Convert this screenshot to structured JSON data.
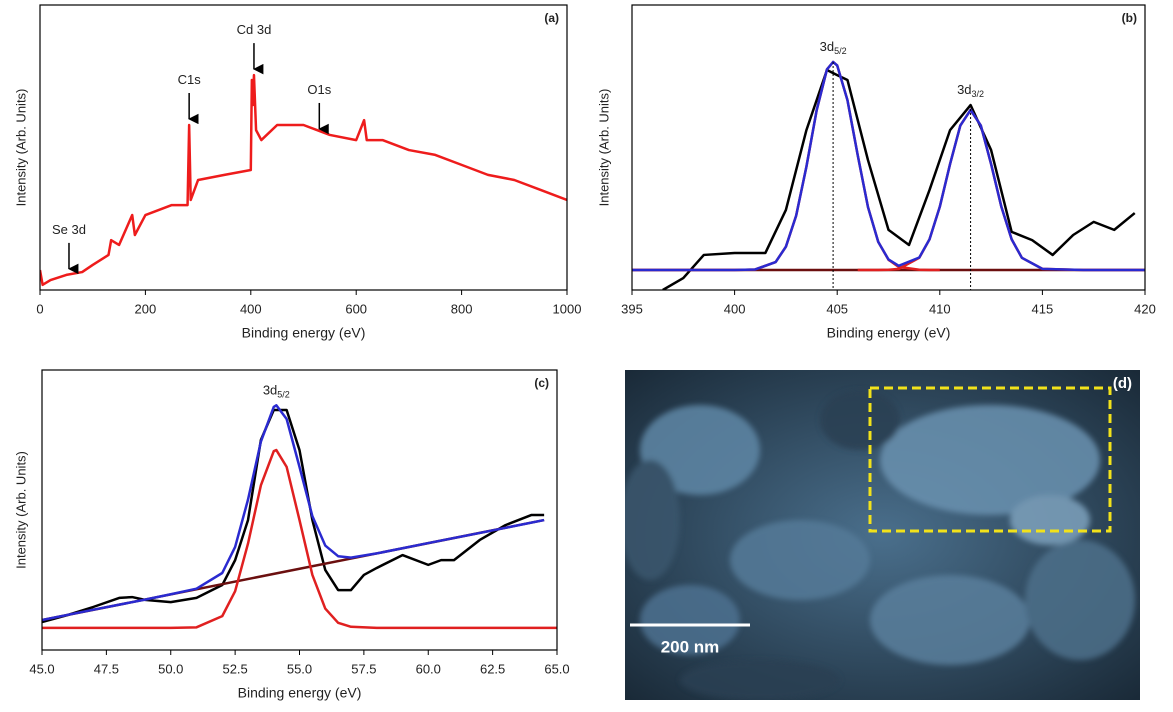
{
  "chart_data": [
    {
      "type": "line",
      "panel_label": "(a)",
      "x_label": "Binding energy (eV)",
      "y_label": "Intensity (Arb. Units)",
      "xlim": [
        0,
        1000
      ],
      "xticks": [
        0,
        200,
        400,
        600,
        800,
        1000
      ],
      "ylim": [
        0,
        100
      ],
      "series": [
        {
          "color": "#ee1c1c",
          "x": [
            0,
            5,
            20,
            50,
            80,
            100,
            130,
            135,
            150,
            175,
            180,
            200,
            250,
            280,
            283,
            286,
            300,
            350,
            400,
            402,
            404,
            406,
            410,
            420,
            450,
            500,
            550,
            600,
            615,
            620,
            650,
            700,
            750,
            800,
            850,
            900,
            950,
            1000
          ],
          "values": [
            7.0,
            1.8,
            3.5,
            5.3,
            6.3,
            8.8,
            12.3,
            17.5,
            15.8,
            26.3,
            19.3,
            26.3,
            29.8,
            29.8,
            57.9,
            31.6,
            38.6,
            40.4,
            42.1,
            73.7,
            64.9,
            75.4,
            56.1,
            52.6,
            57.9,
            57.9,
            54.4,
            52.6,
            59.6,
            52.6,
            52.6,
            49.1,
            47.4,
            43.9,
            40.4,
            38.6,
            35.1,
            31.6
          ]
        }
      ],
      "annotations": [
        {
          "text": "Se 3d",
          "x": 55,
          "arrow": true
        },
        {
          "text": "C1s",
          "x": 283,
          "arrow": true
        },
        {
          "text": "Cd 3d",
          "x": 406,
          "arrow": true
        },
        {
          "text": "O1s",
          "x": 530,
          "arrow": true
        }
      ]
    },
    {
      "type": "line",
      "panel_label": "(b)",
      "x_label": "Binding energy (eV)",
      "y_label": "Intensity (Arb. Units)",
      "xlim": [
        395,
        420
      ],
      "xticks": [
        395,
        400,
        405,
        410,
        415,
        420
      ],
      "ylim": [
        0,
        100
      ],
      "series": [
        {
          "color": "#000000",
          "x": [
            396.5,
            397.5,
            398.5,
            400,
            401.5,
            402.5,
            403.5,
            404.5,
            405,
            405.5,
            406.5,
            407.5,
            408.5,
            409.5,
            410.5,
            411.5,
            412.5,
            413.5,
            414.5,
            415.5,
            416.5,
            417.5,
            418.5,
            419.5
          ],
          "values": [
            0,
            4.2,
            12.3,
            13,
            13,
            28.1,
            56.1,
            77.2,
            75.4,
            73.7,
            45.6,
            21.1,
            15.8,
            35.1,
            56.1,
            64.9,
            49.1,
            20.4,
            17.5,
            12.3,
            19.3,
            23.9,
            21.1,
            27
          ]
        },
        {
          "color": "#6b0f0f",
          "x": [
            395,
            420
          ],
          "values": [
            7,
            7
          ]
        },
        {
          "color": "#e02020",
          "x": [
            395,
            398,
            400,
            401,
            402,
            402.5,
            403,
            403.5,
            404,
            404.5,
            404.8,
            405,
            405.5,
            406,
            406.5,
            407,
            407.5,
            408,
            409,
            409.5,
            410
          ],
          "values": [
            7,
            7,
            7,
            7.2,
            9.8,
            15.2,
            26.1,
            43.3,
            63.1,
            77.4,
            80,
            78.8,
            66.6,
            47.3,
            29.1,
            16.9,
            10.6,
            8.1,
            7.1,
            7,
            7
          ]
        },
        {
          "color": "#e02020",
          "x": [
            406,
            407,
            407.5,
            408,
            409,
            409.5,
            410,
            410.5,
            411,
            411.5,
            412,
            412.5,
            413,
            413.5,
            414,
            415,
            417,
            420
          ],
          "values": [
            7,
            7,
            7.1,
            7.4,
            11.3,
            17.8,
            29.2,
            44.2,
            57.7,
            63.2,
            57.7,
            44.2,
            29.2,
            17.8,
            11.3,
            7.4,
            7,
            7
          ]
        },
        {
          "color": "#2a2ad0",
          "x": [
            395,
            398,
            400,
            401,
            402,
            402.5,
            403,
            403.5,
            404,
            404.5,
            404.8,
            405,
            405.5,
            406,
            406.5,
            407,
            407.5,
            408,
            409,
            409.5,
            410,
            410.5,
            411,
            411.5,
            412,
            412.5,
            413,
            413.5,
            414,
            415,
            417,
            420
          ],
          "values": [
            7,
            7,
            7,
            7.2,
            9.8,
            15.2,
            26.1,
            43.3,
            63.1,
            77.4,
            80,
            78.8,
            66.6,
            47.3,
            29.1,
            16.9,
            10.7,
            8.5,
            11.4,
            17.8,
            29.2,
            44.2,
            57.7,
            63.2,
            57.7,
            44.2,
            29.2,
            17.8,
            11.3,
            7.4,
            7,
            7
          ]
        }
      ],
      "annotations": [
        {
          "text": "3d",
          "subscript": "5/2",
          "x": 404.8,
          "guide": true
        },
        {
          "text": "3d",
          "subscript": "3/2",
          "x": 411.5,
          "guide": true
        }
      ]
    },
    {
      "type": "line",
      "panel_label": "(c)",
      "x_label": "Binding energy (eV)",
      "y_label": "Intensity (Arb. Units)",
      "xlim": [
        45,
        65
      ],
      "ylim": [
        0,
        100
      ],
      "xticks": [
        {
          "value": 45,
          "label": "45.0"
        },
        {
          "value": 47.5,
          "label": "47.5"
        },
        {
          "value": 50,
          "label": "50.0"
        },
        {
          "value": 52.5,
          "label": "52.5"
        },
        {
          "value": 55,
          "label": "55.0"
        },
        {
          "value": 57.5,
          "label": "57.5"
        },
        {
          "value": 60,
          "label": "60.0"
        },
        {
          "value": 62.5,
          "label": "62.5"
        },
        {
          "value": 65,
          "label": "65.0"
        }
      ],
      "series": [
        {
          "color": "#000000",
          "x": [
            45,
            46,
            47,
            48,
            48.5,
            49,
            50,
            51,
            52,
            52.5,
            53,
            53.5,
            54,
            54.5,
            55,
            55.5,
            56,
            56.5,
            57,
            57.5,
            58,
            59,
            60,
            60.5,
            61,
            62,
            63,
            64,
            64.5
          ],
          "values": [
            10,
            12.5,
            15.4,
            18.6,
            18.9,
            17.9,
            17.1,
            18.6,
            23.2,
            32.1,
            46.4,
            75,
            85.7,
            85.7,
            71.4,
            46.4,
            28.6,
            21.4,
            21.4,
            26.8,
            29.3,
            33.9,
            30.4,
            32.1,
            32.1,
            39.3,
            44.6,
            48.2,
            48.2
          ]
        },
        {
          "color": "#6b0f0f",
          "x": [
            45,
            64.5
          ],
          "values": [
            10.7,
            46.4
          ]
        },
        {
          "color": "#e02020",
          "x": [
            45,
            47,
            49,
            50,
            51,
            52,
            52.5,
            53,
            53.5,
            54,
            54.1,
            54.5,
            55,
            55.5,
            56,
            56.5,
            57,
            58,
            60,
            62,
            65
          ],
          "values": [
            7.9,
            7.9,
            7.9,
            7.9,
            8.1,
            12.1,
            21.0,
            38.0,
            58.8,
            71.0,
            71.4,
            65.4,
            46.4,
            26.8,
            14.8,
            9.7,
            8.3,
            7.9,
            7.9,
            7.9,
            7.9
          ]
        },
        {
          "color": "#2a2ad0",
          "x": [
            45,
            47,
            49,
            50,
            51,
            52,
            52.5,
            53,
            53.5,
            54,
            54.1,
            54.5,
            55,
            55.5,
            56,
            56.5,
            57,
            58,
            60,
            62,
            64.5
          ],
          "values": [
            10.7,
            14.4,
            18.0,
            19.9,
            21.9,
            27.5,
            36.8,
            53.7,
            74.4,
            86.8,
            87.4,
            82.5,
            65.4,
            47.8,
            37.3,
            33.5,
            33.0,
            34.5,
            38.2,
            41.8,
            46.4
          ]
        }
      ],
      "annotations": [
        {
          "text": "3d",
          "subscript": "5/2",
          "x": 54.1
        }
      ]
    }
  ],
  "image_panel": {
    "label": "(d)",
    "scale_bar": "200 nm"
  }
}
